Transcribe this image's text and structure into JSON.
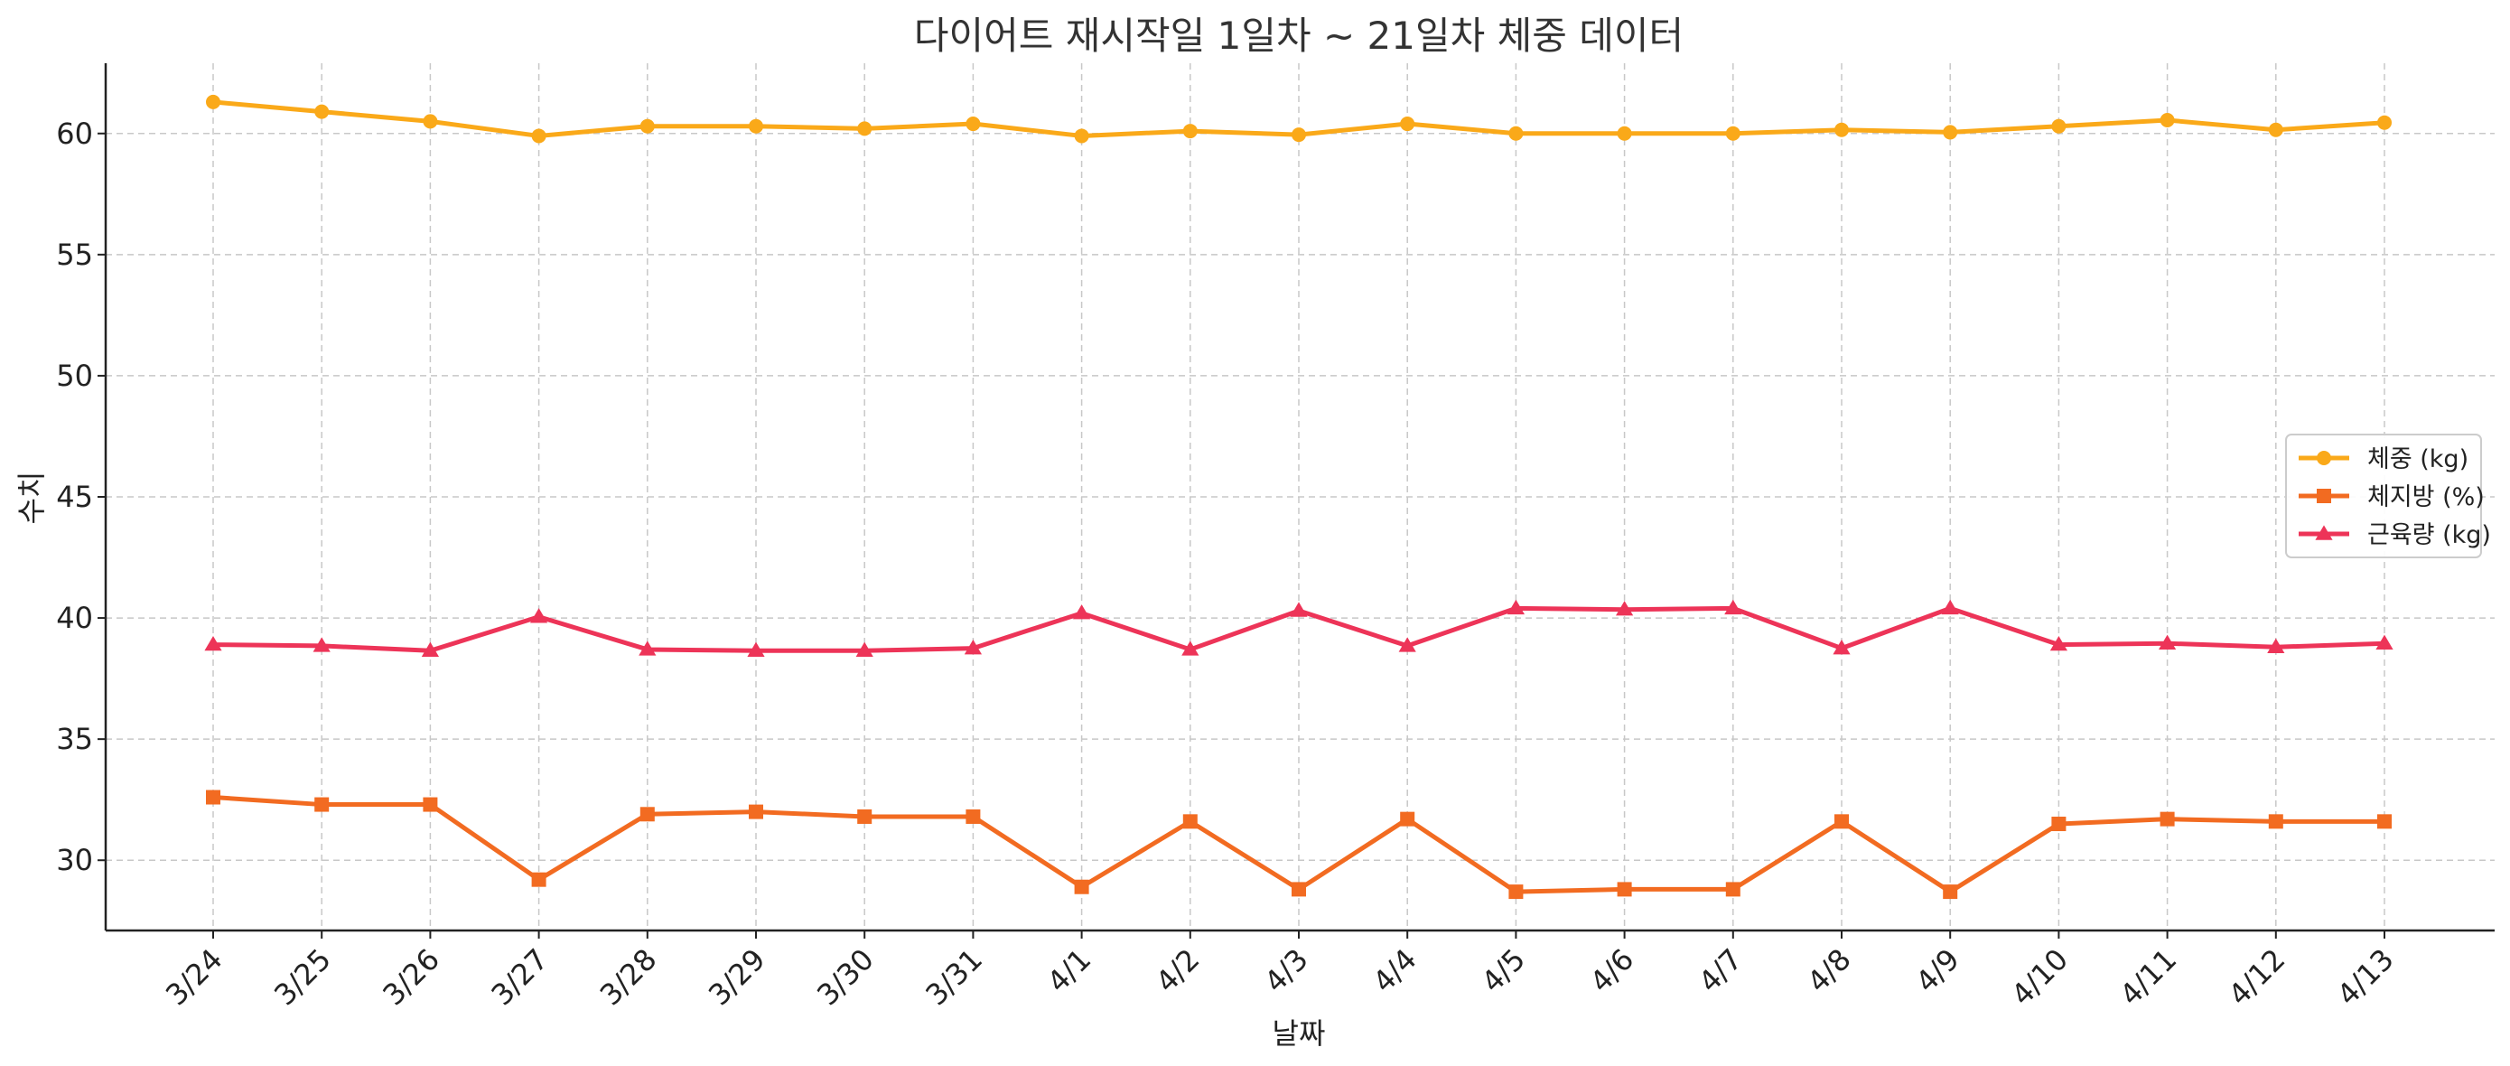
{
  "chart_data": {
    "type": "line",
    "title": "다이어트 재시작일 1일차 ~ 21일차 체중 데이터",
    "xlabel": "날짜",
    "ylabel": "수치",
    "categories": [
      "3/24",
      "3/25",
      "3/26",
      "3/27",
      "3/28",
      "3/29",
      "3/30",
      "3/31",
      "4/1",
      "4/2",
      "4/3",
      "4/4",
      "4/5",
      "4/6",
      "4/7",
      "4/8",
      "4/9",
      "4/10",
      "4/11",
      "4/12",
      "4/13"
    ],
    "y_ticks": [
      30,
      35,
      40,
      45,
      50,
      55,
      60
    ],
    "ylim": [
      27.1,
      62.9
    ],
    "grid": true,
    "legend_position": "center-right",
    "series": [
      {
        "name": "체중 (kg)",
        "color": "#FAA919",
        "marker": "circle",
        "values": [
          61.3,
          60.9,
          60.5,
          59.9,
          60.3,
          60.3,
          60.2,
          60.4,
          59.9,
          60.1,
          59.95,
          60.4,
          60.0,
          60.0,
          60.0,
          60.15,
          60.05,
          60.3,
          60.55,
          60.15,
          60.45
        ]
      },
      {
        "name": "체지방 (%)",
        "color": "#F26B21",
        "marker": "square",
        "values": [
          32.6,
          32.3,
          32.3,
          29.2,
          31.9,
          32.0,
          31.8,
          31.8,
          28.9,
          31.6,
          28.8,
          31.7,
          28.7,
          28.8,
          28.8,
          31.6,
          28.7,
          31.5,
          31.7,
          31.6,
          31.6
        ]
      },
      {
        "name": "근육량 (kg)",
        "color": "#ED3458",
        "marker": "triangle",
        "values": [
          38.9,
          38.85,
          38.65,
          40.05,
          38.7,
          38.65,
          38.65,
          38.75,
          40.2,
          38.7,
          40.3,
          38.85,
          40.4,
          40.35,
          40.4,
          38.75,
          40.4,
          38.9,
          38.95,
          38.8,
          38.95
        ]
      }
    ]
  }
}
